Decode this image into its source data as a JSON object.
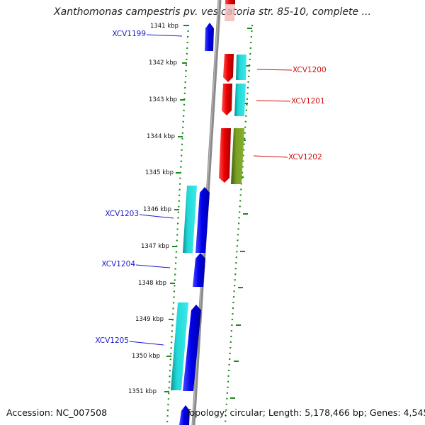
{
  "title": "Xanthomonas campestris pv. vesicatoria str. 85-10, complete ...",
  "footer": {
    "accession": "Accession: NC_007508",
    "topology": "Topology: circular; Length: 5,178,466 bp; Genes: 4,545"
  },
  "scale_labels": [
    "1341 kbp",
    "1342 kbp",
    "1343 kbp",
    "1344 kbp",
    "1345 kbp",
    "1346 kbp",
    "1347 kbp",
    "1348 kbp",
    "1349 kbp",
    "1350 kbp",
    "1351 kbp"
  ],
  "genes": {
    "left": [
      "XCV1199",
      "XCV1203",
      "XCV1204",
      "XCV1205"
    ],
    "right": [
      "XCV1200",
      "XCV1201",
      "XCV1202"
    ]
  },
  "colors": {
    "forward_cds": "#e00000",
    "reverse_cds": "#0000e0",
    "feature_cyan": "#00c8c8",
    "feature_olive": "#6a8c1a",
    "axis": "#909090",
    "ticks": "#1a8a1a",
    "label_blue": "#1a1ad0",
    "label_red": "#d01010"
  }
}
